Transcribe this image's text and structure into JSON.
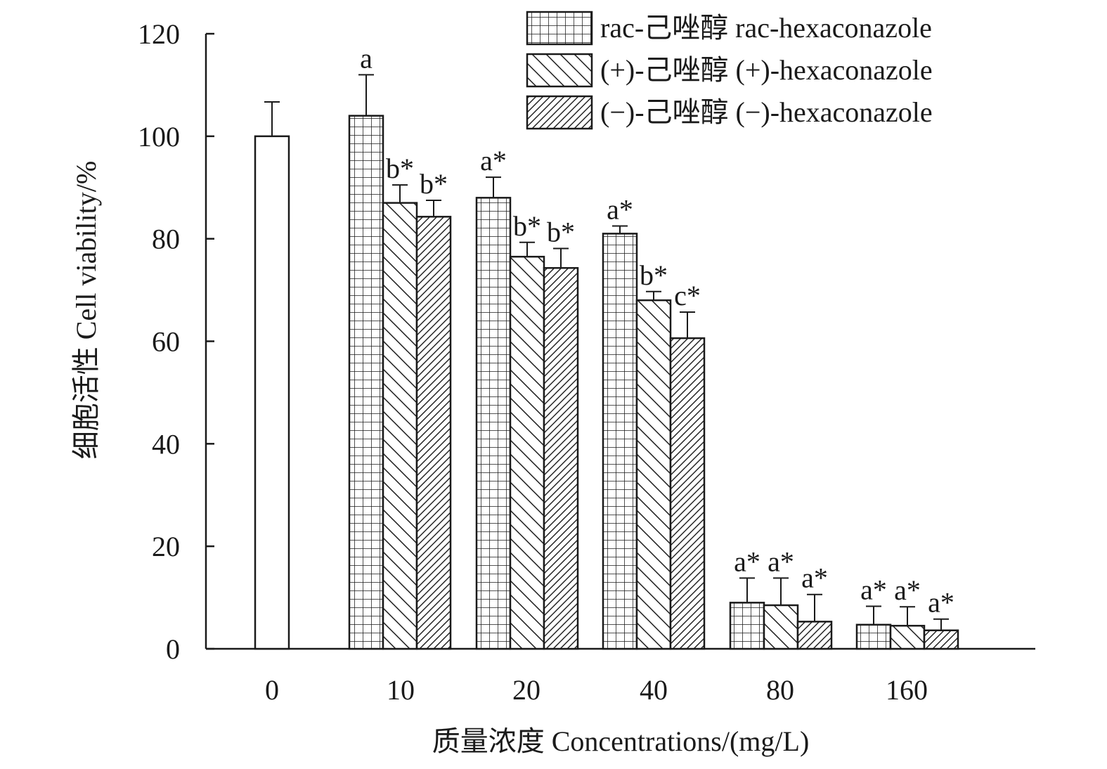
{
  "chart_data": {
    "type": "bar",
    "xlabel": "质量浓度 Concentrations/(mg/L)",
    "ylabel": "细胞活性 Cell viability/%",
    "ylim": [
      0,
      120
    ],
    "yticks": [
      "0",
      "20",
      "40",
      "60",
      "80",
      "100",
      "120"
    ],
    "grid": false,
    "legend_position": "top-right",
    "categories": [
      "0",
      "10",
      "20",
      "40",
      "80",
      "160"
    ],
    "control": {
      "category": "0",
      "value": 100,
      "error": 6.7
    },
    "series": [
      {
        "name": "rac-己唑醇 rac-hexaconazole",
        "pattern": "grid",
        "values": [
          null,
          104,
          88,
          81,
          9,
          4.7
        ],
        "errors": [
          null,
          8,
          4,
          1.5,
          4.8,
          3.6
        ],
        "labels": [
          "",
          "a",
          "a*",
          "a*",
          "a*",
          "a*"
        ]
      },
      {
        "name": "(+)-己唑醇 (+)-hexaconazole",
        "pattern": "backslash",
        "values": [
          null,
          87,
          76.5,
          68,
          8.5,
          4.5
        ],
        "errors": [
          null,
          3.5,
          2.8,
          1.7,
          5.3,
          3.7
        ],
        "labels": [
          "",
          "b*",
          "b*",
          "b*",
          "a*",
          "a*"
        ]
      },
      {
        "name": "(−)-己唑醇 (−)-hexaconazole",
        "pattern": "slash",
        "values": [
          null,
          84.3,
          74.3,
          60.6,
          5.3,
          3.6
        ],
        "errors": [
          null,
          3.2,
          3.8,
          5.1,
          5.3,
          2.2
        ],
        "labels": [
          "",
          "b*",
          "b*",
          "c*",
          "a*",
          "a*"
        ]
      }
    ]
  }
}
